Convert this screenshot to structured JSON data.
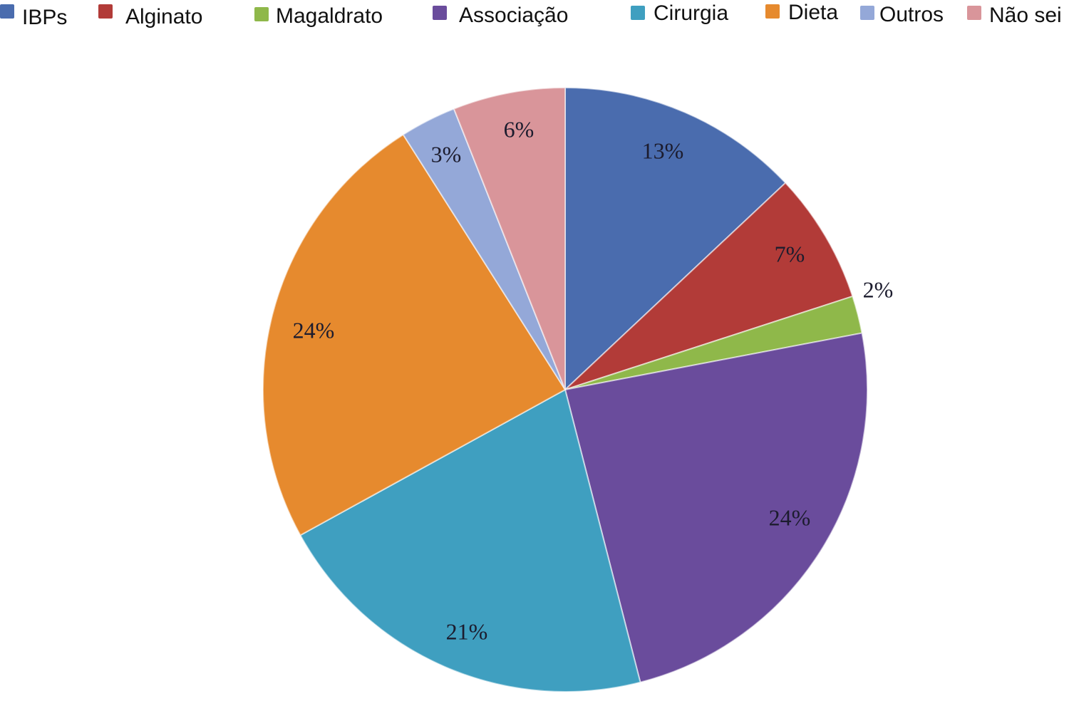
{
  "chart_data": {
    "type": "pie",
    "title": "",
    "legend_position": "top",
    "start_angle_deg": 0,
    "direction": "clockwise",
    "categories": [
      "IBPs",
      "Alginato",
      "Magaldrato",
      "Associação",
      "Cirurgia",
      "Dieta",
      "Outros",
      "Não sei"
    ],
    "values": [
      13,
      7,
      2,
      24,
      21,
      24,
      3,
      6
    ],
    "labels": [
      "13%",
      "7%",
      "2%",
      "24%",
      "21%",
      "24%",
      "3%",
      "6%"
    ],
    "colors": [
      "#4a6cae",
      "#b23b38",
      "#8fb84a",
      "#6a4c9c",
      "#3f9fc0",
      "#e68a2e",
      "#94a8d8",
      "#d9959a"
    ]
  }
}
